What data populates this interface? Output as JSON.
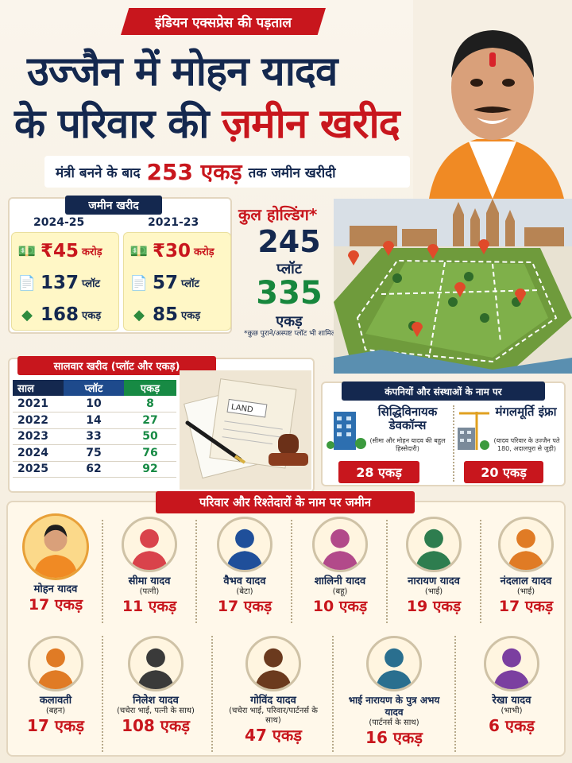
{
  "header": {
    "kicker": "इंडियन एक्सप्रेस की पड़ताल",
    "title_line1": "उज्जैन में मोहन यादव",
    "title_line2_a": "के परिवार की ",
    "title_line2_b": "ज़मीन खरीद",
    "sub_a": "मंत्री बनने के बाद",
    "sub_big": "253 एकड़",
    "sub_b": "तक जमीन खरीदी"
  },
  "purchase": {
    "tag": "जमीन खरीद",
    "periods": [
      {
        "year": "2024-25",
        "money": "₹45",
        "money_unit": "करोड़",
        "plots": "137",
        "plots_unit": "प्लॉट",
        "acres": "168",
        "acres_unit": "एकड़"
      },
      {
        "year": "2021-23",
        "money": "₹30",
        "money_unit": "करोड़",
        "plots": "57",
        "plots_unit": "प्लॉट",
        "acres": "85",
        "acres_unit": "एकड़"
      }
    ]
  },
  "total": {
    "title": "कुल होल्डिंग*",
    "plots": "245",
    "plots_unit": "प्लॉट",
    "acres": "335",
    "acres_unit": "एकड़",
    "note": "*कुछ पुराने/अस्पष्ट प्लॉट भी शामिल"
  },
  "yearly": {
    "tag": "सालवार खरीद (प्लॉट और एकड़)",
    "headers": [
      "साल",
      "प्लॉट",
      "एकड़"
    ],
    "rows": [
      [
        "2021",
        "10",
        "8"
      ],
      [
        "2022",
        "14",
        "27"
      ],
      [
        "2023",
        "33",
        "50"
      ],
      [
        "2024",
        "75",
        "76"
      ],
      [
        "2025",
        "62",
        "92"
      ]
    ],
    "doc_label": "LAND"
  },
  "companies": {
    "tag": "कंपनियों और संस्थाओं के नाम पर",
    "items": [
      {
        "name": "सिद्धिविनायक डेवकॉन्स",
        "sub": "(सीमा और मोहन यादव की बहुल हिस्सेदारी)",
        "acres": "28 एकड़"
      },
      {
        "name": "मंगलमूर्ति इंफ्रा",
        "sub": "(यादव परिवार के उज्जैन पते 180, अदालपुरा से जुड़ी)",
        "acres": "20 एकड़"
      }
    ]
  },
  "relatives": {
    "tag": "परिवार और रिश्तेदारों के नाम पर जमीन",
    "people": [
      {
        "name": "मोहन यादव",
        "relation": "",
        "acres": "17 एकड़",
        "color": "#e8a038"
      },
      {
        "name": "सीमा यादव",
        "relation": "(पत्नी)",
        "acres": "11 एकड़",
        "color": "#d9434b"
      },
      {
        "name": "वैभव यादव",
        "relation": "(बेटा)",
        "acres": "17 एकड़",
        "color": "#1f4f9a"
      },
      {
        "name": "शालिनी यादव",
        "relation": "(बहू)",
        "acres": "10 एकड़",
        "color": "#b24a8a"
      },
      {
        "name": "नारायण यादव",
        "relation": "(भाई)",
        "acres": "19 एकड़",
        "color": "#2e7d4f"
      },
      {
        "name": "नंदलाल यादव",
        "relation": "(भाई)",
        "acres": "17 एकड़",
        "color": "#e07b25"
      },
      {
        "name": "कलावती",
        "relation": "(बहन)",
        "acres": "17 एकड़",
        "color": "#e07b25"
      },
      {
        "name": "निलेश यादव",
        "relation": "(चचेरा भाई, पत्नी के साथ)",
        "acres": "108 एकड़",
        "color": "#3a3a3a"
      },
      {
        "name": "गोविंद यादव",
        "relation": "(चचेरा भाई, परिवार/पार्टनर्स के साथ)",
        "acres": "47 एकड़",
        "color": "#6b3a1e"
      },
      {
        "name": "भाई नारायण के पुत्र अभय यादव",
        "relation": "(पार्टनर्स के साथ)",
        "acres": "16 एकड़",
        "color": "#2a6f8f"
      },
      {
        "name": "रेखा यादव",
        "relation": "(भाभी)",
        "acres": "6 एकड़",
        "color": "#7b3fa0"
      }
    ]
  }
}
